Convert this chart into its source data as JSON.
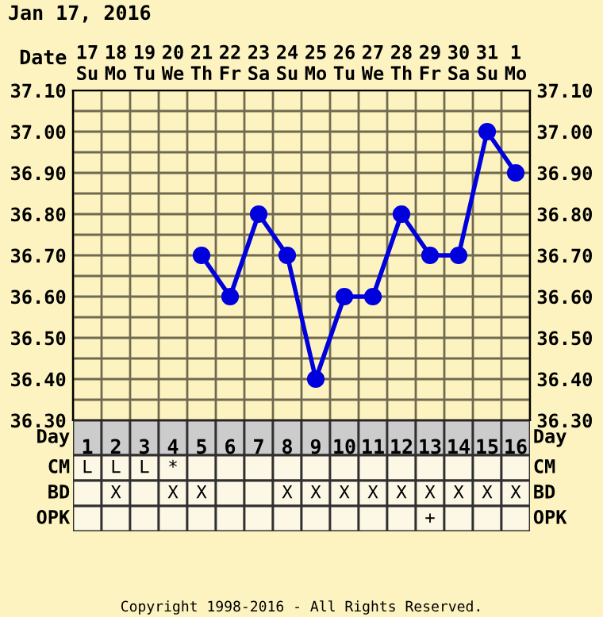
{
  "chart_data": {
    "type": "line",
    "title": "Jan 17, 2016",
    "xlabel": "Date",
    "categories": [
      "17\nSu",
      "18\nMo",
      "19\nTu",
      "20\nWe",
      "21\nTh",
      "22\nFr",
      "23\nSa",
      "24\nSu",
      "25\nMo",
      "26\nTu",
      "27\nWe",
      "28\nTh",
      "29\nFr",
      "30\nSa",
      "31\nSu",
      "1\nMo"
    ],
    "series": [
      {
        "color": "#0000dd",
        "values": [
          null,
          null,
          null,
          null,
          36.7,
          36.6,
          36.8,
          36.7,
          36.4,
          36.6,
          36.6,
          36.8,
          36.7,
          36.7,
          37.0,
          36.9
        ]
      }
    ],
    "ylim": [
      36.3,
      37.1
    ],
    "yticks": [
      {
        "value": 36.3,
        "label": "36.30"
      },
      {
        "value": 36.35,
        "label": null
      },
      {
        "value": 36.4,
        "label": "36.40"
      },
      {
        "value": 36.45,
        "label": null
      },
      {
        "value": 36.5,
        "label": "36.50"
      },
      {
        "value": 36.55,
        "label": null
      },
      {
        "value": 36.6,
        "label": "36.60"
      },
      {
        "value": 36.65,
        "label": null
      },
      {
        "value": 36.7,
        "label": "36.70"
      },
      {
        "value": 36.75,
        "label": null
      },
      {
        "value": 36.8,
        "label": "36.80"
      },
      {
        "value": 36.85,
        "label": null
      },
      {
        "value": 36.9,
        "label": "36.90"
      },
      {
        "value": 36.95,
        "label": null
      },
      {
        "value": 37.0,
        "label": "37.00"
      },
      {
        "value": 37.05,
        "label": null
      },
      {
        "value": 37.1,
        "label": "37.10"
      }
    ],
    "y2lim": [
      36.3,
      37.1
    ],
    "y2ticks": [
      {
        "value": 36.3,
        "label": "36.30"
      },
      {
        "value": 36.35,
        "label": null
      },
      {
        "value": 36.4,
        "label": "36.40"
      },
      {
        "value": 36.45,
        "label": null
      },
      {
        "value": 36.5,
        "label": "36.50"
      },
      {
        "value": 36.55,
        "label": null
      },
      {
        "value": 36.6,
        "label": "36.60"
      },
      {
        "value": 36.65,
        "label": null
      },
      {
        "value": 36.7,
        "label": "36.70"
      },
      {
        "value": 36.75,
        "label": null
      },
      {
        "value": 36.8,
        "label": "36.80"
      },
      {
        "value": 36.85,
        "label": null
      },
      {
        "value": 36.9,
        "label": "36.90"
      },
      {
        "value": 36.95,
        "label": null
      },
      {
        "value": 37.0,
        "label": "37.00"
      },
      {
        "value": 37.05,
        "label": null
      },
      {
        "value": 37.1,
        "label": "37.10"
      }
    ],
    "grid": true,
    "marker": "circle",
    "line_style": "solid",
    "x2label": "Day",
    "x2lim": [
      0.5,
      16.5
    ],
    "x2ticks": [
      1,
      2,
      3,
      4,
      5,
      6,
      7,
      8,
      9,
      10,
      11,
      12,
      13,
      14,
      15,
      16
    ],
    "annotations": [
      "CM",
      "L",
      "L",
      "L",
      "*",
      null,
      null,
      null,
      null,
      null,
      null,
      null,
      null,
      null,
      null,
      null,
      null,
      "BD",
      null,
      "X",
      null,
      "X",
      "X",
      null,
      null,
      "X",
      "X",
      "X",
      "X",
      "X",
      "X",
      "X",
      "X",
      "X",
      "OPK",
      null,
      null,
      null,
      null,
      null,
      null,
      null,
      null,
      null,
      null,
      null,
      null,
      "+",
      null,
      null,
      null,
      "Copyright 1998-2016 - All Rights Reserved."
    ]
  }
}
